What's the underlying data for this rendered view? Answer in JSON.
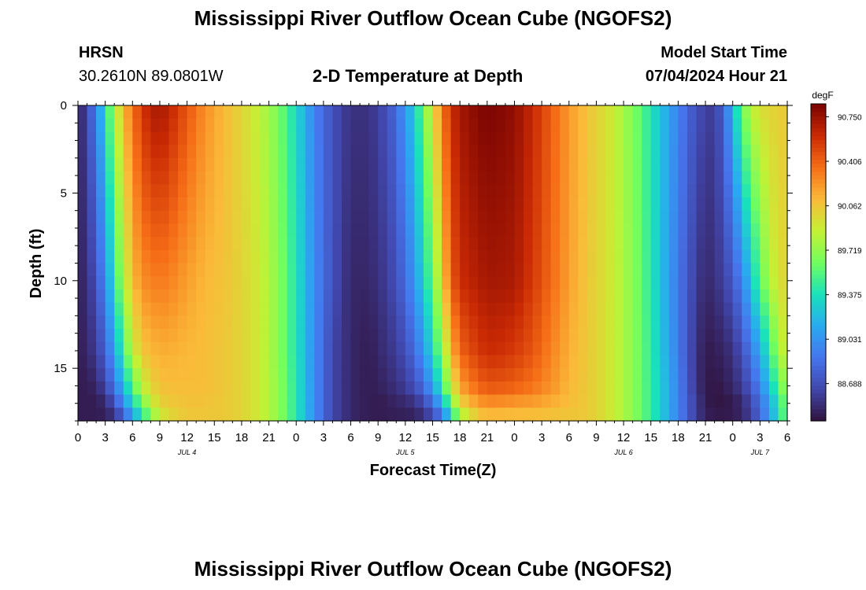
{
  "header": {
    "title": "Mississippi River Outflow Ocean Cube (NGOFS2)",
    "station": "HRSN",
    "coords": "30.2610N  89.0801W",
    "subtitle": "2-D Temperature at Depth",
    "model_start_label": "Model Start Time",
    "model_start_value": "07/04/2024 Hour 21"
  },
  "footer": {
    "title": "Mississippi River Outflow Ocean Cube (NGOFS2)"
  },
  "chart_data": {
    "type": "heatmap",
    "xlabel": "Forecast Time(Z)",
    "ylabel": "Depth (ft)",
    "x_unit": "hours from JUL 4 00Z",
    "xlim": [
      0,
      78
    ],
    "ylim": [
      0,
      18
    ],
    "y_ticks": [
      0,
      5,
      10,
      15
    ],
    "x_tick_labels": [
      "0",
      "3",
      "6",
      "9",
      "12",
      "15",
      "18",
      "21",
      "0",
      "3",
      "6",
      "9",
      "12",
      "15",
      "18",
      "21",
      "0",
      "3",
      "6",
      "9",
      "12",
      "15",
      "18",
      "21",
      "0",
      "3",
      "6"
    ],
    "date_labels": [
      {
        "text": "JUL 4",
        "hour": 12
      },
      {
        "text": "JUL 5",
        "hour": 36
      },
      {
        "text": "JUL 6",
        "hour": 60
      },
      {
        "text": "JUL 7",
        "hour": 75
      }
    ],
    "colorbar": {
      "unit": "degF",
      "min": 88.4,
      "max": 90.85,
      "tick_values": [
        90.75,
        90.406,
        90.062,
        89.719,
        89.375,
        89.031,
        88.688
      ],
      "tick_labels": [
        "90.750",
        "90.406",
        "90.062",
        "89.719",
        "89.375",
        "89.031",
        "88.688"
      ]
    },
    "temperature_profiles": {
      "hours": [
        0,
        1,
        2,
        3,
        4,
        5,
        6,
        7,
        8,
        9,
        10,
        12,
        14,
        16,
        18,
        20,
        22,
        24,
        26,
        28,
        30,
        32,
        34,
        35,
        36,
        37,
        38,
        39,
        40,
        41,
        42,
        44,
        45,
        46,
        48,
        50,
        52,
        54,
        56,
        58,
        59,
        60,
        62,
        64,
        66,
        68,
        69,
        70,
        71,
        72,
        73,
        74,
        75,
        76,
        77,
        78
      ],
      "depth_ft": [
        0,
        10,
        14,
        16,
        17,
        18
      ],
      "degF": [
        [
          88.45,
          88.45,
          88.45,
          88.45,
          88.45,
          88.45
        ],
        [
          88.65,
          88.55,
          88.5,
          88.45,
          88.45,
          88.45
        ],
        [
          88.95,
          88.7,
          88.6,
          88.5,
          88.45,
          88.45
        ],
        [
          89.35,
          89.0,
          88.8,
          88.65,
          88.5,
          88.45
        ],
        [
          89.8,
          89.4,
          89.1,
          88.9,
          88.7,
          88.5
        ],
        [
          90.1,
          89.8,
          89.5,
          89.2,
          89.0,
          88.7
        ],
        [
          90.35,
          90.1,
          89.85,
          89.55,
          89.3,
          89.0
        ],
        [
          90.55,
          90.25,
          90.05,
          89.85,
          89.6,
          89.3
        ],
        [
          90.68,
          90.3,
          90.12,
          90.0,
          89.85,
          89.6
        ],
        [
          90.72,
          90.32,
          90.15,
          90.08,
          90.0,
          89.85
        ],
        [
          90.65,
          90.3,
          90.15,
          90.1,
          90.05,
          89.95
        ],
        [
          90.45,
          90.2,
          90.12,
          90.1,
          90.08,
          90.05
        ],
        [
          90.25,
          90.12,
          90.1,
          90.1,
          90.08,
          90.05
        ],
        [
          90.12,
          90.08,
          90.06,
          90.06,
          90.05,
          90.05
        ],
        [
          90.0,
          90.0,
          90.0,
          90.0,
          90.0,
          90.0
        ],
        [
          89.85,
          89.9,
          89.9,
          89.9,
          89.9,
          89.9
        ],
        [
          89.65,
          89.7,
          89.7,
          89.72,
          89.72,
          89.72
        ],
        [
          89.35,
          89.4,
          89.4,
          89.42,
          89.42,
          89.42
        ],
        [
          88.95,
          89.0,
          89.0,
          89.0,
          89.0,
          89.0
        ],
        [
          88.7,
          88.7,
          88.65,
          88.65,
          88.65,
          88.65
        ],
        [
          88.55,
          88.5,
          88.5,
          88.5,
          88.5,
          88.5
        ],
        [
          88.55,
          88.5,
          88.45,
          88.45,
          88.45,
          88.45
        ],
        [
          88.7,
          88.6,
          88.55,
          88.5,
          88.45,
          88.45
        ],
        [
          88.85,
          88.7,
          88.6,
          88.55,
          88.5,
          88.45
        ],
        [
          89.05,
          88.85,
          88.7,
          88.6,
          88.5,
          88.45
        ],
        [
          89.3,
          89.05,
          88.85,
          88.7,
          88.55,
          88.45
        ],
        [
          89.6,
          89.3,
          89.05,
          88.85,
          88.65,
          88.5
        ],
        [
          89.95,
          89.6,
          89.35,
          89.1,
          88.85,
          88.6
        ],
        [
          90.3,
          90.0,
          89.7,
          89.45,
          89.15,
          88.8
        ],
        [
          90.58,
          90.4,
          90.1,
          89.85,
          89.6,
          89.2
        ],
        [
          90.72,
          90.6,
          90.4,
          90.2,
          90.0,
          89.7
        ],
        [
          90.82,
          90.68,
          90.55,
          90.4,
          90.2,
          90.0
        ],
        [
          90.84,
          90.72,
          90.6,
          90.45,
          90.25,
          90.05
        ],
        [
          90.83,
          90.72,
          90.6,
          90.45,
          90.25,
          90.05
        ],
        [
          90.78,
          90.7,
          90.55,
          90.42,
          90.22,
          90.05
        ],
        [
          90.62,
          90.55,
          90.45,
          90.35,
          90.2,
          90.05
        ],
        [
          90.42,
          90.38,
          90.3,
          90.25,
          90.15,
          90.05
        ],
        [
          90.22,
          90.2,
          90.15,
          90.12,
          90.1,
          90.05
        ],
        [
          90.08,
          90.06,
          90.05,
          90.05,
          90.05,
          90.05
        ],
        [
          89.95,
          89.95,
          89.95,
          89.95,
          89.95,
          89.95
        ],
        [
          89.88,
          89.88,
          89.88,
          89.88,
          89.88,
          89.88
        ],
        [
          89.78,
          89.8,
          89.8,
          89.8,
          89.8,
          89.8
        ],
        [
          89.55,
          89.58,
          89.6,
          89.6,
          89.6,
          89.6
        ],
        [
          89.25,
          89.25,
          89.28,
          89.3,
          89.3,
          89.3
        ],
        [
          88.95,
          88.9,
          88.92,
          88.95,
          88.95,
          88.95
        ],
        [
          88.7,
          88.6,
          88.55,
          88.55,
          88.6,
          88.6
        ],
        [
          88.62,
          88.5,
          88.45,
          88.45,
          88.45,
          88.48
        ],
        [
          88.6,
          88.55,
          88.45,
          88.42,
          88.42,
          88.45
        ],
        [
          88.8,
          88.62,
          88.5,
          88.45,
          88.42,
          88.45
        ],
        [
          89.2,
          88.75,
          88.55,
          88.5,
          88.45,
          88.45
        ],
        [
          89.6,
          88.95,
          88.7,
          88.6,
          88.5,
          88.5
        ],
        [
          89.85,
          89.25,
          88.9,
          88.75,
          88.65,
          88.6
        ],
        [
          89.95,
          89.55,
          89.15,
          88.95,
          88.85,
          88.8
        ],
        [
          90.0,
          89.8,
          89.45,
          89.25,
          89.1,
          89.05
        ],
        [
          90.02,
          89.95,
          89.75,
          89.55,
          89.4,
          89.35
        ],
        [
          90.05,
          90.0,
          89.95,
          89.8,
          89.7,
          89.65
        ]
      ]
    }
  }
}
